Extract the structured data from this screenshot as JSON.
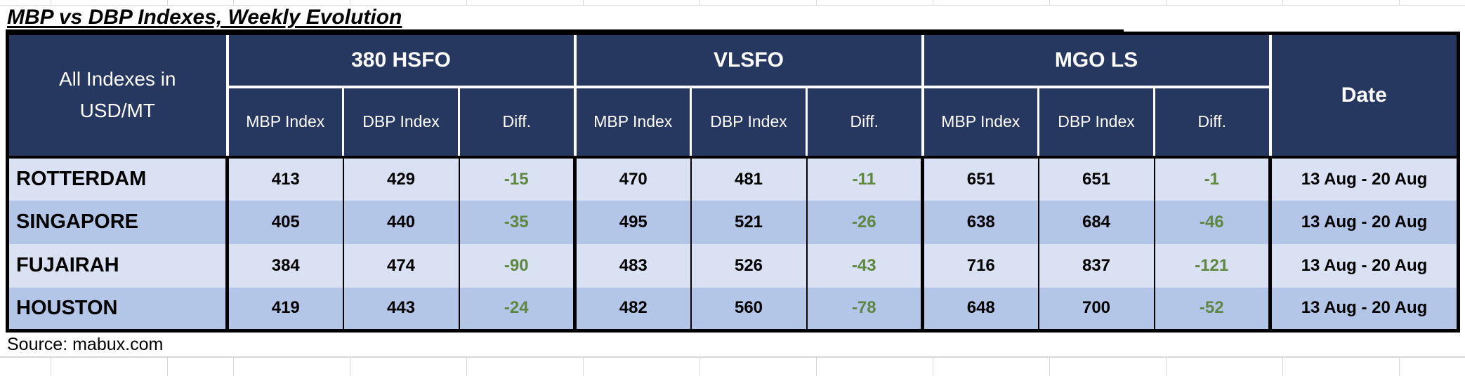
{
  "chart_data": {
    "type": "table",
    "title": "MBP vs DBP Indexes, Weekly Evolution",
    "corner_header_line1": "All Indexes in",
    "corner_header_line2": "USD/MT",
    "groups": [
      {
        "label": "380 HSFO"
      },
      {
        "label": "VLSFO"
      },
      {
        "label": "MGO LS"
      }
    ],
    "sub_headers": {
      "mbp": "MBP Index",
      "dbp": "DBP Index",
      "diff": "Diff."
    },
    "date_header": "Date",
    "rows": [
      {
        "location": "ROTTERDAM",
        "values": [
          413,
          429,
          -15,
          470,
          481,
          -11,
          651,
          651,
          -1
        ],
        "date": "13 Aug - 20 Aug"
      },
      {
        "location": "SINGAPORE",
        "values": [
          405,
          440,
          -35,
          495,
          521,
          -26,
          638,
          684,
          -46
        ],
        "date": "13 Aug - 20 Aug"
      },
      {
        "location": "FUJAIRAH",
        "values": [
          384,
          474,
          -90,
          483,
          526,
          -43,
          716,
          837,
          -121
        ],
        "date": "13 Aug - 20 Aug"
      },
      {
        "location": "HOUSTON",
        "values": [
          419,
          443,
          -24,
          482,
          560,
          -78,
          648,
          700,
          -52
        ],
        "date": "13 Aug - 20 Aug"
      }
    ],
    "source": "Source: mabux.com",
    "colors": {
      "header_bg": "#263760",
      "row_light": "#D9E1F2",
      "row_dark": "#B4C6E7",
      "diff_green": "#5E8742",
      "border_black": "#000000",
      "gridline_gray": "#D9D9D9"
    },
    "layout_hints": {
      "grid": "off inside data rows, alternating row shading",
      "legend": "none"
    }
  }
}
